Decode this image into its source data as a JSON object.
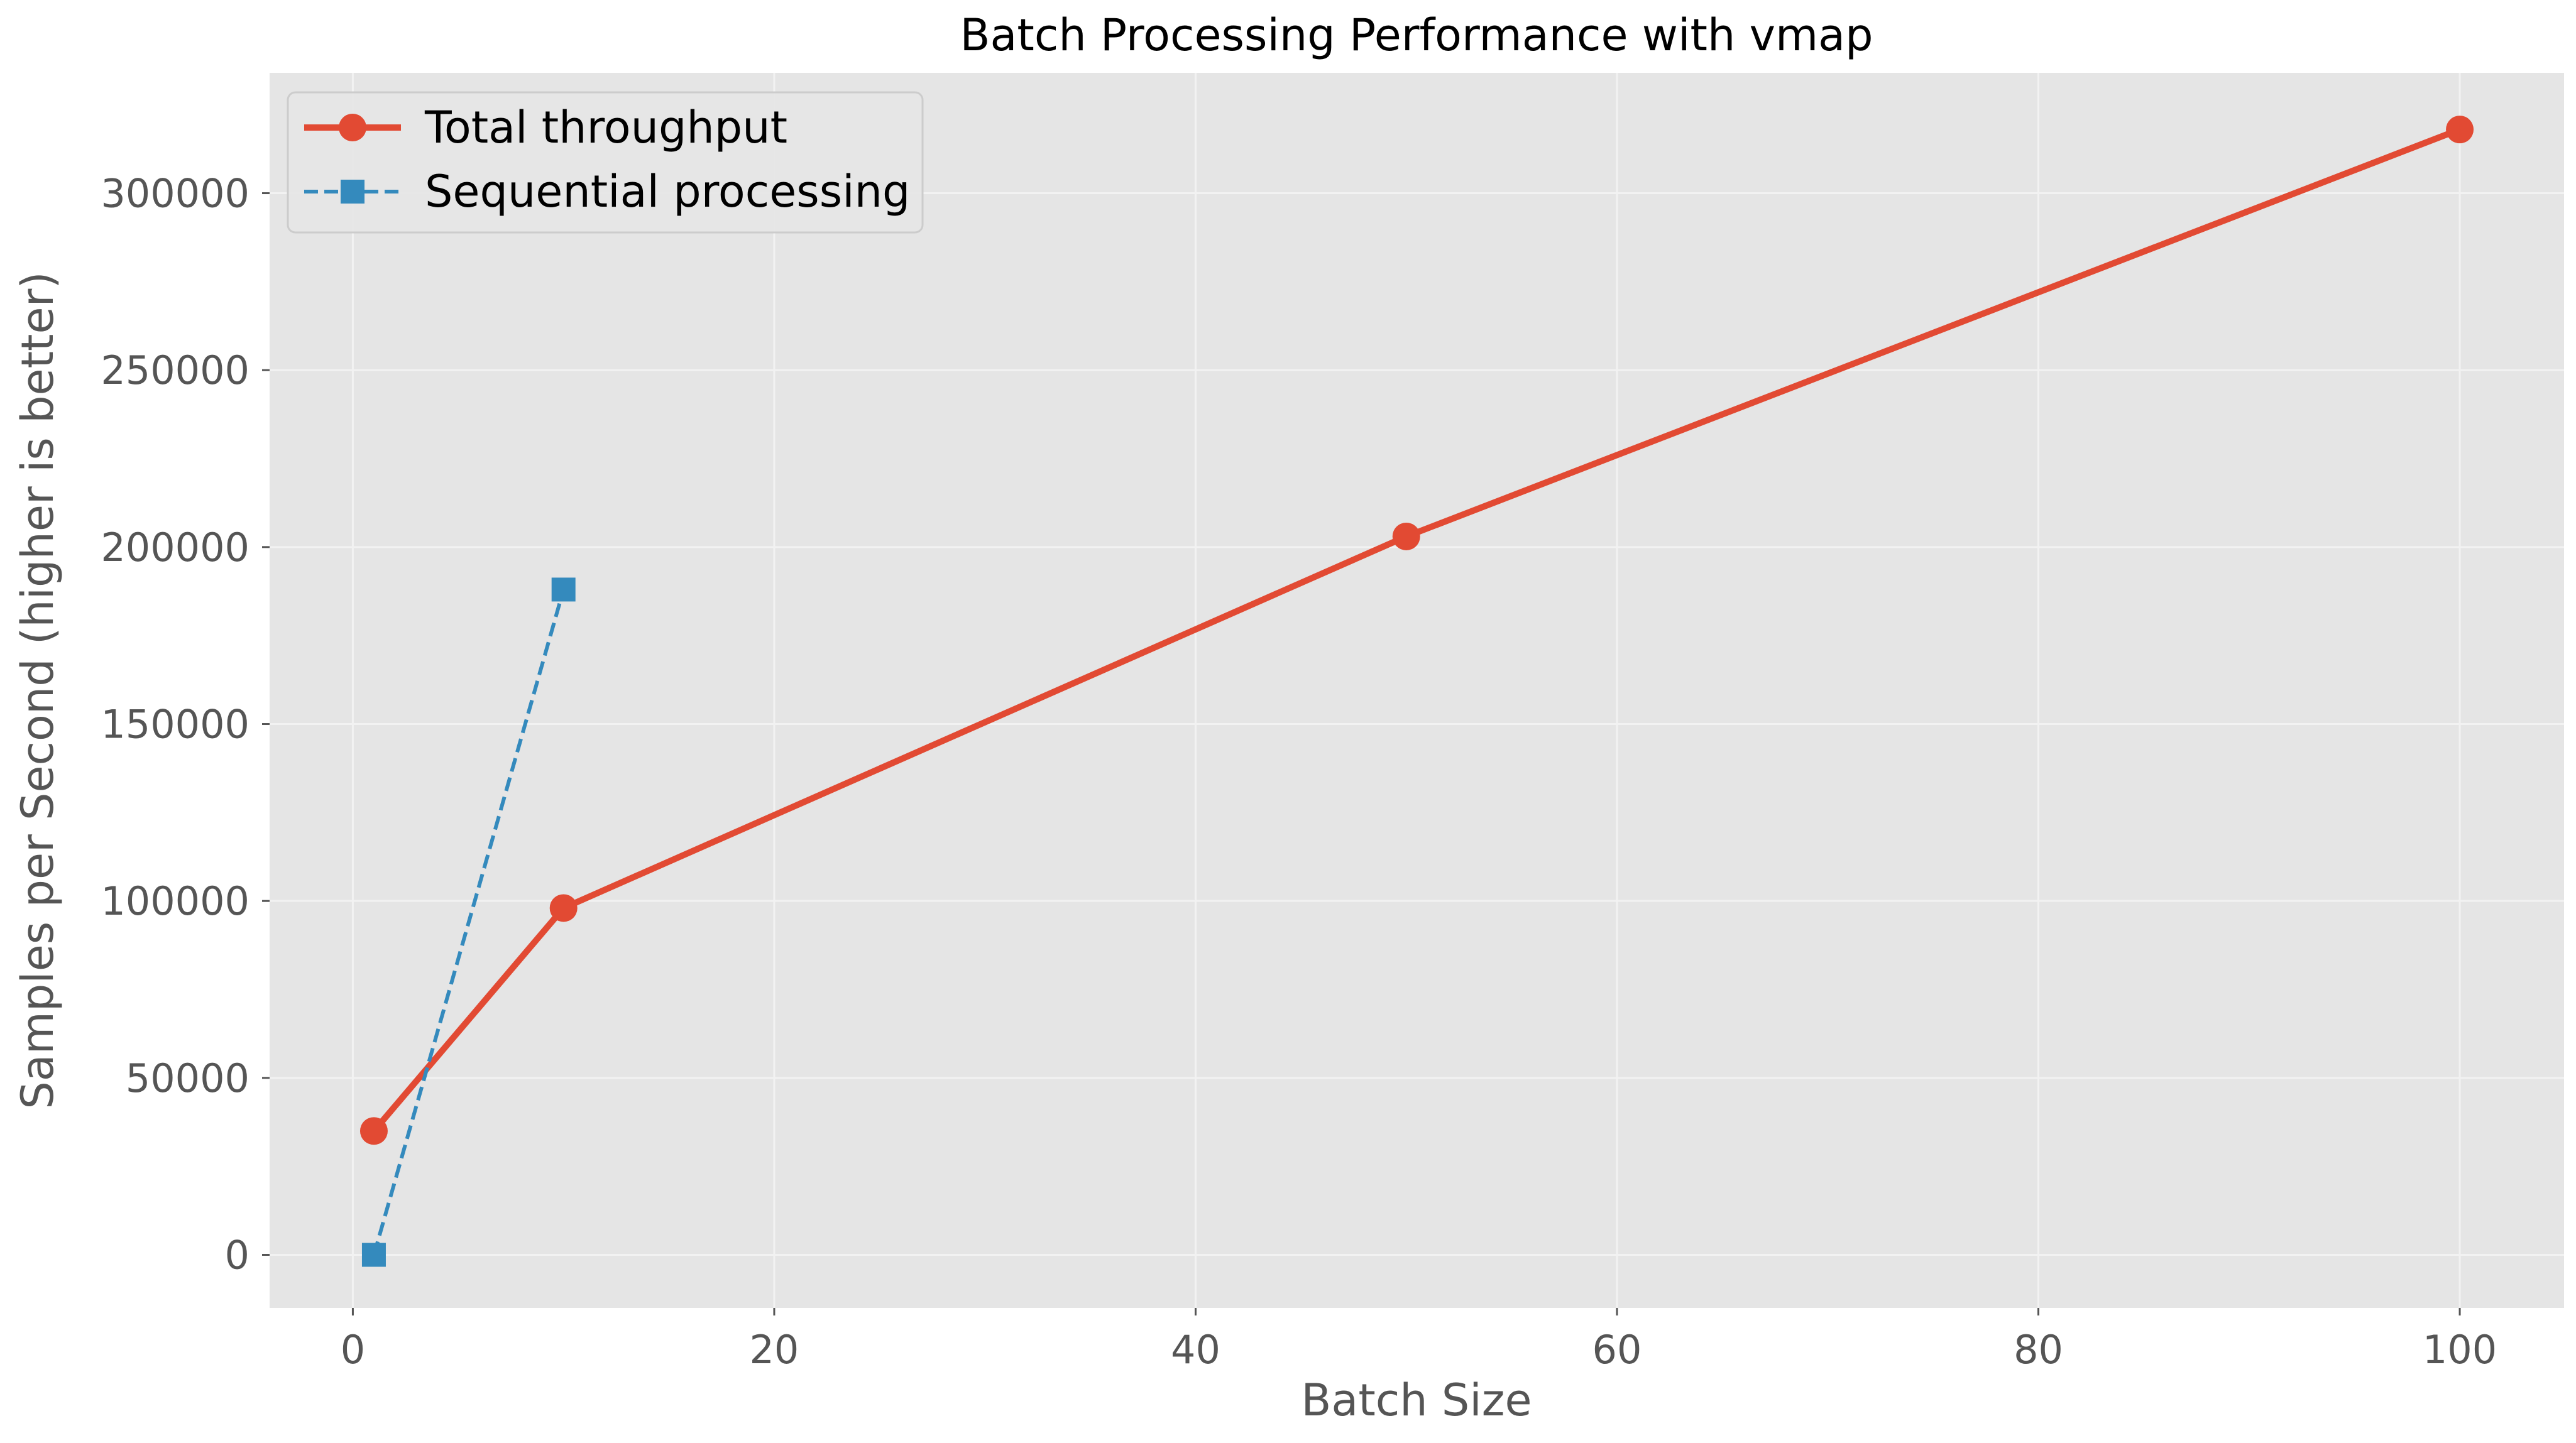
{
  "chart_data": {
    "type": "line",
    "title": "Batch Processing Performance with vmap",
    "xlabel": "Batch Size",
    "ylabel": "Samples per Second (higher is better)",
    "xlim": [
      -3.95,
      104.95
    ],
    "ylim": [
      -15000,
      334000
    ],
    "xticks": [
      0,
      20,
      40,
      60,
      80,
      100
    ],
    "yticks": [
      0,
      50000,
      100000,
      150000,
      200000,
      250000,
      300000
    ],
    "grid": true,
    "legend_position": "upper-left",
    "series": [
      {
        "name": "Total throughput",
        "color": "#E24A33",
        "line_style": "solid",
        "marker": "circle",
        "x": [
          1,
          10,
          50,
          100
        ],
        "y": [
          35000,
          98000,
          203000,
          318000
        ]
      },
      {
        "name": "Sequential processing",
        "color": "#348ABD",
        "line_style": "dashed",
        "marker": "square",
        "x": [
          1,
          10
        ],
        "y": [
          0,
          188000
        ]
      }
    ]
  },
  "colors": {
    "plot_background": "#E5E5E5",
    "grid": "#F2F2F2",
    "axis_text": "#555555",
    "title_text": "#000000"
  }
}
